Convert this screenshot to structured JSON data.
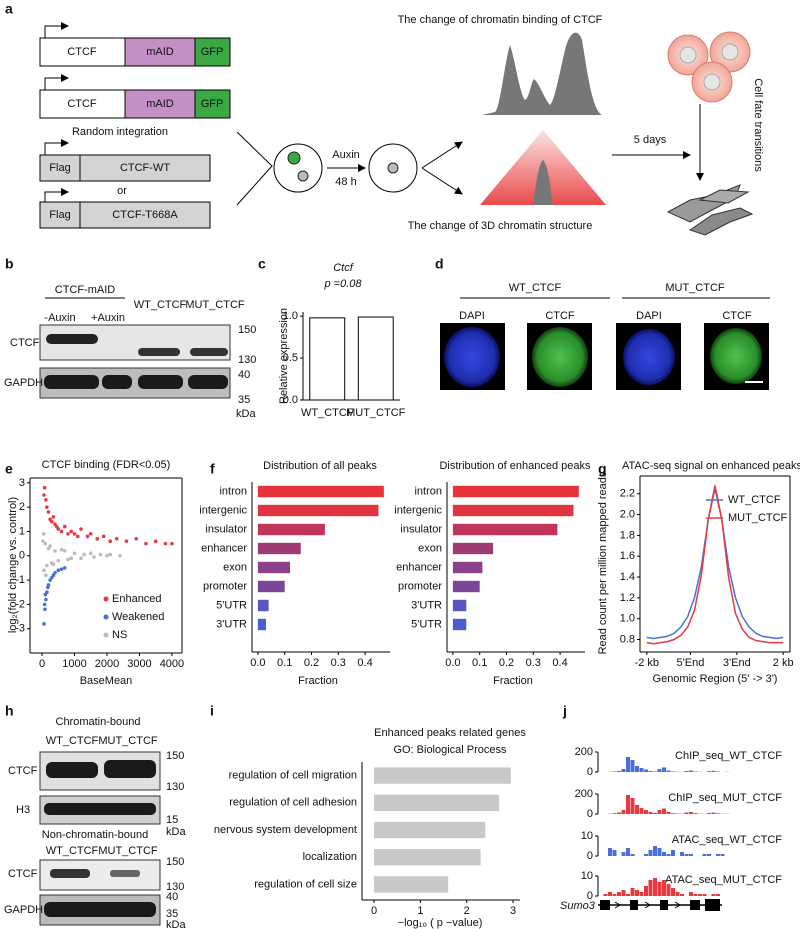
{
  "panel_labels": [
    "a",
    "b",
    "c",
    "d",
    "e",
    "f",
    "g",
    "h",
    "i",
    "j"
  ],
  "a": {
    "construct_1": [
      "CTCF",
      "mAID",
      "GFP"
    ],
    "construct_2": [
      "CTCF",
      "mAID",
      "GFP"
    ],
    "random_integration": "Random integration",
    "construct_3": [
      "Flag",
      "CTCF-WT"
    ],
    "or": "or",
    "construct_4": [
      "Flag",
      "CTCF-T668A"
    ],
    "auxin": "Auxin",
    "time": "48 h",
    "binding_change": "The change of chromatin binding of CTCF",
    "structure_change": "The change of 3D chromatin structure",
    "days": "5 days",
    "fate": "Cell fate transitions"
  },
  "b": {
    "group": "CTCF-mAID",
    "lanes": [
      "-Auxin",
      "+Auxin",
      "WT_CTCF",
      "MUT_CTCF"
    ],
    "rows": [
      "CTCF",
      "GAPDH"
    ],
    "markers": [
      "150",
      "130",
      "40",
      "35"
    ],
    "unit": "kDa"
  },
  "d": {
    "groups": [
      "WT_CTCF",
      "MUT_CTCF"
    ],
    "channels": [
      "DAPI",
      "CTCF",
      "DAPI",
      "CTCF"
    ]
  },
  "h": {
    "top_title": "Chromatin-bound",
    "top_lanes": [
      "WT_CTCF",
      "MUT_CTCF"
    ],
    "top_rows": [
      "CTCF",
      "H3"
    ],
    "top_markers": [
      "150",
      "130",
      "15"
    ],
    "unit": "kDa",
    "bottom_title": "Non-chromatin-bound",
    "bottom_lanes": [
      "WT_CTCF",
      "MUT_CTCF"
    ],
    "bottom_rows": [
      "CTCF",
      "GAPDH"
    ],
    "bottom_markers": [
      "150",
      "130",
      "40",
      "35"
    ]
  },
  "j": {
    "gene": "Sumo3",
    "tracks": [
      {
        "name": "ChIP_seq_WT_CTCF",
        "color": "#4a6fd8",
        "ylim": [
          0,
          200
        ],
        "yticks": [
          0,
          200
        ],
        "values": [
          0,
          0,
          2,
          5,
          10,
          30,
          150,
          120,
          60,
          40,
          25,
          10,
          5,
          30,
          45,
          15,
          5,
          3,
          2,
          10,
          15,
          5,
          2,
          0,
          8,
          12,
          4,
          0,
          2,
          0
        ]
      },
      {
        "name": "ChIP_seq_MUT_CTCF",
        "color": "#e8393f",
        "ylim": [
          0,
          200
        ],
        "yticks": [
          0,
          200
        ],
        "values": [
          0,
          0,
          3,
          8,
          15,
          40,
          190,
          160,
          90,
          60,
          40,
          20,
          10,
          40,
          55,
          20,
          8,
          5,
          3,
          15,
          20,
          8,
          3,
          2,
          10,
          15,
          6,
          2,
          3,
          0
        ]
      },
      {
        "name": "ATAC_seq_WT_CTCF",
        "color": "#4a6fd8",
        "ylim": [
          0,
          10
        ],
        "yticks": [
          0,
          10
        ],
        "values": [
          0,
          0,
          4,
          3,
          0,
          2,
          4,
          1,
          0,
          0,
          1,
          3,
          5,
          4,
          2,
          1,
          3,
          0,
          2,
          1,
          1,
          0,
          0,
          1,
          1,
          0,
          1,
          1,
          0,
          0
        ]
      },
      {
        "name": "ATAC_seq_MUT_CTCF",
        "color": "#e8393f",
        "ylim": [
          0,
          10
        ],
        "yticks": [
          0,
          10
        ],
        "values": [
          0,
          1,
          2,
          1,
          2,
          3,
          1,
          4,
          3,
          2,
          5,
          8,
          9,
          7,
          8,
          6,
          4,
          2,
          1,
          0,
          2,
          1,
          1,
          1,
          0,
          1,
          1,
          0,
          0,
          0
        ]
      }
    ]
  },
  "chart_data": [
    {
      "type": "bar",
      "title": "Ctcf",
      "subtitle": "p =0.08",
      "ylabel": "Relative expression",
      "categories": [
        "WT_CTCF",
        "MUT_CTCF"
      ],
      "values": [
        0.98,
        0.99
      ],
      "color": "#ffffff",
      "edgecolor": "#000000",
      "ylim": [
        0,
        1.05
      ],
      "yticks": [
        {
          "value": 0,
          "label": "0.0"
        },
        0.5,
        {
          "value": 1,
          "label": "1.0"
        }
      ]
    },
    {
      "type": "scatter",
      "title": "CTCF binding (FDR<0.05)",
      "xlabel": "BaseMean",
      "ylabel": "log₂(fold change vs. control)",
      "xlim": [
        -370,
        4310
      ],
      "ylim": [
        -4,
        3.2
      ],
      "xticks": [
        0,
        1000,
        2000,
        3000,
        4000
      ],
      "yticks": [
        -3,
        -2,
        -1,
        0,
        1,
        2,
        3
      ],
      "legend_loc": "lower right",
      "series": [
        {
          "name": "Enhanced",
          "color": "#e8393f",
          "x": [
            80,
            120,
            150,
            200,
            250,
            300,
            350,
            400,
            450,
            500,
            600,
            700,
            800,
            900,
            1000,
            1100,
            1200,
            1400,
            1500,
            1700,
            1900,
            2100,
            2300,
            2600,
            2900,
            3200,
            3500,
            3800,
            4000,
            60
          ],
          "values": [
            2.8,
            2.3,
            2.0,
            1.8,
            1.5,
            1.4,
            1.6,
            1.3,
            1.2,
            1.1,
            1.0,
            1.2,
            0.9,
            1.0,
            0.9,
            0.8,
            1.1,
            0.8,
            0.9,
            0.7,
            0.8,
            0.6,
            0.7,
            0.6,
            0.7,
            0.5,
            0.6,
            0.5,
            0.5,
            2.5
          ]
        },
        {
          "name": "Weakened",
          "color": "#4a6fd8",
          "x": [
            60,
            90,
            120,
            150,
            200,
            250,
            300,
            350,
            400,
            500,
            600,
            700,
            80,
            100,
            180
          ],
          "values": [
            -2.8,
            -2.2,
            -1.8,
            -1.5,
            -1.2,
            -1.0,
            -0.9,
            -0.8,
            -0.7,
            -0.6,
            -0.55,
            -0.5,
            -2.0,
            -1.6,
            -1.3
          ]
        },
        {
          "name": "NS",
          "color": "#bbbbbb",
          "x": [
            30,
            60,
            100,
            150,
            200,
            300,
            400,
            500,
            600,
            800,
            1000,
            1200,
            1500,
            1800,
            2100,
            2400,
            50,
            120,
            250,
            350,
            700,
            900,
            1300,
            1600,
            2000
          ],
          "values": [
            0.6,
            -0.6,
            0.5,
            -0.4,
            0.3,
            -0.3,
            0.2,
            -0.2,
            0.25,
            -0.15,
            0.1,
            -0.1,
            0.1,
            0.05,
            0.05,
            0,
            0.9,
            -0.8,
            0.4,
            -0.35,
            0.2,
            -0.1,
            0.05,
            -0.05,
            0
          ]
        }
      ]
    },
    {
      "type": "barh",
      "title": "Distribution of all peaks",
      "xlabel": "Fraction",
      "categories": [
        "intron",
        "intergenic",
        "insulator",
        "enhancer",
        "exon",
        "promoter",
        "5'UTR",
        "3'UTR"
      ],
      "values": [
        0.47,
        0.45,
        0.25,
        0.16,
        0.12,
        0.1,
        0.04,
        0.03
      ],
      "colors": [
        "#e8333a",
        "#e03540",
        "#c0365a",
        "#a03a72",
        "#8c3f8a",
        "#7a4699",
        "#5a55c0",
        "#4a5ed0"
      ],
      "xlim": [
        -0.022,
        0.493
      ],
      "xticks": [
        {
          "value": 0,
          "label": "0.0"
        },
        0.1,
        0.2,
        0.3,
        0.4
      ]
    },
    {
      "type": "barh",
      "title": "Distribution of enhanced peaks",
      "xlabel": "Fraction",
      "categories": [
        "intron",
        "intergenic",
        "insulator",
        "exon",
        "enhancer",
        "promoter",
        "3'UTR",
        "5'UTR"
      ],
      "values": [
        0.47,
        0.45,
        0.39,
        0.15,
        0.11,
        0.1,
        0.05,
        0.05
      ],
      "colors": [
        "#e8333a",
        "#e03540",
        "#c0365a",
        "#a03a72",
        "#8c3f8a",
        "#7a4699",
        "#5a55c0",
        "#4a5ed0"
      ],
      "xlim": [
        -0.022,
        0.493
      ],
      "xticks": [
        {
          "value": 0,
          "label": "0.0"
        },
        0.1,
        0.2,
        0.3,
        0.4
      ]
    },
    {
      "type": "line",
      "title": "ATAC-seq signal on enhanced peaks",
      "xlabel": "Genomic Region (5' -> 3')",
      "ylabel": "Read count per million mapped reads",
      "xlim": [
        -5,
        105
      ],
      "ylim": [
        0.68,
        2.37
      ],
      "xticks": [
        {
          "value": 0,
          "label": "-2 kb"
        },
        {
          "value": 32,
          "label": "5'End"
        },
        {
          "value": 66,
          "label": "3'End"
        },
        {
          "value": 100,
          "label": "2 kb"
        }
      ],
      "yticks": [
        0.8,
        {
          "value": 1,
          "label": "1.0"
        },
        1.2,
        1.4,
        1.6,
        1.8,
        {
          "value": 2,
          "label": "2.0"
        },
        2.2
      ],
      "legend_loc": "upper right",
      "x": [
        0,
        5,
        10,
        15,
        20,
        25,
        30,
        35,
        40,
        45,
        50,
        55,
        60,
        65,
        70,
        75,
        80,
        85,
        90,
        95,
        100
      ],
      "series": [
        {
          "name": "WT_CTCF",
          "color": "#4a6fd8",
          "values": [
            0.82,
            0.81,
            0.82,
            0.83,
            0.86,
            0.92,
            1.02,
            1.2,
            1.5,
            1.95,
            2.25,
            1.95,
            1.5,
            1.2,
            1.02,
            0.92,
            0.86,
            0.83,
            0.82,
            0.81,
            0.82
          ]
        },
        {
          "name": "MUT_CTCF",
          "color": "#e8393f",
          "values": [
            0.77,
            0.76,
            0.77,
            0.78,
            0.8,
            0.84,
            0.92,
            1.08,
            1.42,
            1.95,
            2.28,
            1.95,
            1.4,
            1.05,
            0.9,
            0.82,
            0.79,
            0.78,
            0.77,
            0.77,
            0.77
          ]
        }
      ]
    },
    {
      "type": "barh",
      "title": "Enhanced peaks related genes",
      "subtitle": "GO: Biological Process",
      "xlabel": "−log₁₀ ( p −value)",
      "categories": [
        "regulation of cell migration",
        "regulation of cell adhesion",
        "nervous system development",
        "localization",
        "regulation of cell size"
      ],
      "values": [
        2.95,
        2.7,
        2.4,
        2.3,
        1.6
      ],
      "color": "#c8c8c8",
      "xlim": [
        -0.26,
        3.15
      ],
      "xticks": [
        0,
        1,
        2,
        3
      ]
    }
  ]
}
